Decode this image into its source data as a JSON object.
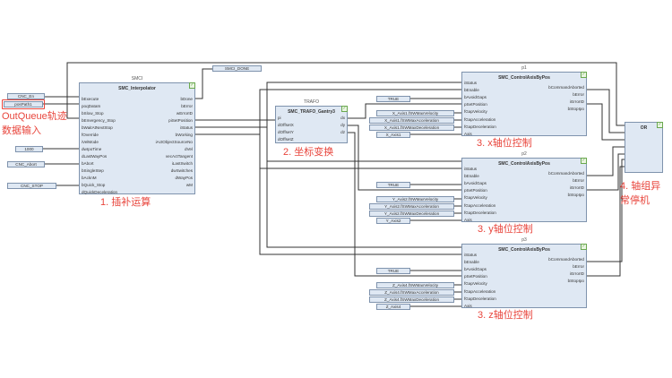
{
  "colors": {
    "annotation": "#e8453c",
    "block_fill": "#dfe8f3",
    "block_border": "#7f93ad",
    "wire": "#333333"
  },
  "blocks": [
    {
      "id": "smci",
      "instance": "SMCI",
      "title": "SMC_Interpolator",
      "inputs": [
        "bExecute",
        "poqDataIn",
        "bSlow_Stop",
        "bEmergency_Stop",
        "bWaitAtNextStop",
        "fOverride",
        "iVelMode",
        "dwIpoTime",
        "dLastWayPos",
        "bAbort",
        "bSingleStep",
        "bAcknM",
        "bQuick_Stop",
        "dQuickDeceleration"
      ],
      "outputs": [
        "bDone",
        "bError",
        "wErrorID",
        "piSetPosition",
        "iStatus",
        "bWorking",
        "iActObjectSourceNo",
        "dVel",
        "vecActTangent",
        "iLastSwitch",
        "dwSwitches",
        "dWayPos",
        "wM"
      ]
    },
    {
      "id": "trafo",
      "instance": "TRAFO",
      "title": "SMC_TRAFO_Gantry3",
      "inputs": [
        "pi",
        "dOffsetX",
        "dOffsetY",
        "dOffsetZ"
      ],
      "outputs": [
        "dx",
        "dy",
        "dz"
      ]
    },
    {
      "id": "p1",
      "instance": "p1",
      "title": "SMC_ControlAxisByPos",
      "inputs": [
        "iStatus",
        "bEnable",
        "bAvoidGaps",
        "pSetPosition",
        "fGapVelocity",
        "fGapAcceleration",
        "fGapDeceleration",
        "Axis"
      ],
      "outputs": [
        "bCommandAborted",
        "bError",
        "iErrorID",
        "bStopIpo"
      ]
    },
    {
      "id": "p2",
      "instance": "p2",
      "title": "SMC_ControlAxisByPos",
      "inputs": [
        "iStatus",
        "bEnable",
        "bAvoidGaps",
        "pSetPosition",
        "fGapVelocity",
        "fGapAcceleration",
        "fGapDeceleration",
        "Axis"
      ],
      "outputs": [
        "bCommandAborted",
        "bError",
        "iErrorID",
        "bStopIpo"
      ]
    },
    {
      "id": "p3",
      "instance": "p3",
      "title": "SMC_ControlAxisByPos",
      "inputs": [
        "iStatus",
        "bEnable",
        "bAvoidGaps",
        "pSetPosition",
        "fGapVelocity",
        "fGapAcceleration",
        "fGapDeceleration",
        "Axis"
      ],
      "outputs": [
        "bCommandAborted",
        "bError",
        "iErrorID",
        "bStopIpo"
      ]
    },
    {
      "id": "or",
      "instance": "",
      "title": "OR",
      "inputs": [],
      "outputs": []
    }
  ],
  "variables": {
    "cnc_en": "CNC_En",
    "pospath": "posPath1",
    "t1000": "1000",
    "cnc_abort": "CNC_Abort",
    "cnc_stop": "CNC_STOP",
    "smci_done": "SMCI_DONE",
    "true1": "TRUE",
    "x_vel": "X_Axis1.fSWMaxVelocity",
    "x_acc": "X_Axis1.fSWMaxAcceleration",
    "x_dec": "X_Axis1.fSWMaxDeceleration",
    "x_axis": "X_Axis1",
    "true2": "TRUE",
    "y_vel": "Y_Axis2.fSWMaxVelocity",
    "y_acc": "Y_Axis2.fSWMaxAcceleration",
    "y_dec": "Y_Axis2.fSWMaxDeceleration",
    "y_axis": "Y_Axis2",
    "true3": "TRUE",
    "z_vel": "Z_Axis4.fSWMaxVelocity",
    "z_acc": "Z_Axis4.fSWMaxAcceleration",
    "z_dec": "Z_Axis4.fSWMaxDeceleration",
    "z_axis": "Z_Axis4"
  },
  "annotations": {
    "outqueue_1": "OutQueue轨迹",
    "outqueue_2": "数据输入",
    "interp": "1. 插补运算",
    "trafo": "2. 坐标变换",
    "x": "3. x轴位控制",
    "y": "3. y轴位控制",
    "z": "3. z轴位控制",
    "stop_1": "4. 轴组异",
    "stop_2": "常停机"
  },
  "check_icon": "check-icon"
}
